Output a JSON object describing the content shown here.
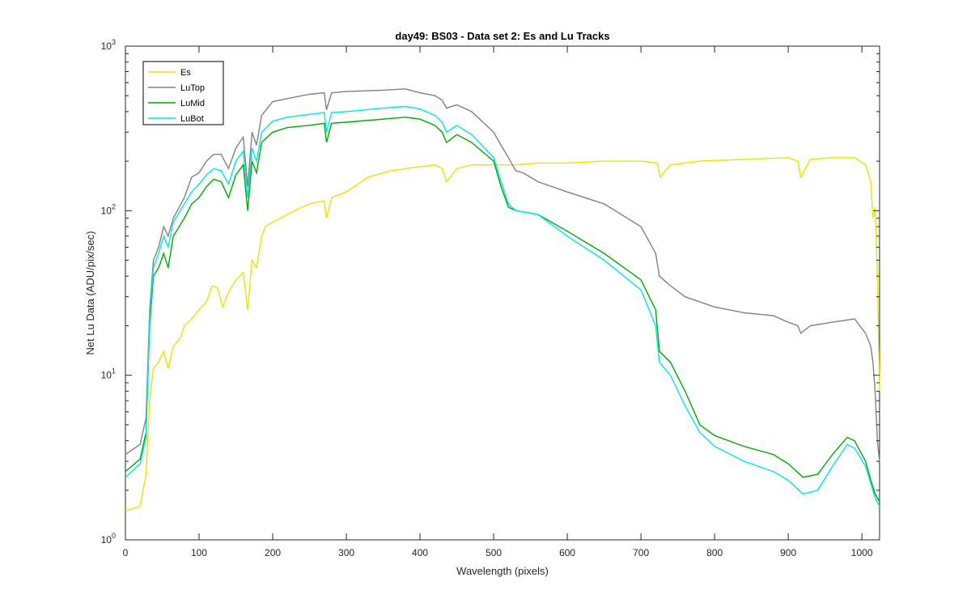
{
  "chart_data": {
    "type": "line",
    "title": "day49: BS03 - Data set 2: Es and Lu Tracks",
    "xlabel": "Wavelength (pixels)",
    "ylabel": "Net Lu Data (ADU/pix/sec)",
    "xlim": [
      0,
      1024
    ],
    "ylim": [
      1,
      1000
    ],
    "yscale": "log",
    "grid": false,
    "legend_position": "top-left",
    "x_ticks": [
      "0",
      "100",
      "200",
      "300",
      "400",
      "500",
      "600",
      "700",
      "800",
      "900",
      "1000"
    ],
    "y_ticks": [
      {
        "base": "10",
        "exp": "0"
      },
      {
        "base": "10",
        "exp": "1"
      },
      {
        "base": "10",
        "exp": "2"
      },
      {
        "base": "10",
        "exp": "3"
      }
    ],
    "series": [
      {
        "name": "Es",
        "color": "#e6e600",
        "points": [
          [
            0,
            1.5
          ],
          [
            20,
            1.6
          ],
          [
            28,
            2.5
          ],
          [
            33,
            7
          ],
          [
            38,
            11
          ],
          [
            45,
            12
          ],
          [
            52,
            14
          ],
          [
            58,
            11
          ],
          [
            65,
            15
          ],
          [
            75,
            17
          ],
          [
            80,
            20
          ],
          [
            90,
            22
          ],
          [
            100,
            25
          ],
          [
            110,
            28
          ],
          [
            118,
            35
          ],
          [
            125,
            34
          ],
          [
            132,
            26
          ],
          [
            140,
            32
          ],
          [
            150,
            38
          ],
          [
            160,
            42
          ],
          [
            166,
            25
          ],
          [
            172,
            50
          ],
          [
            178,
            45
          ],
          [
            185,
            70
          ],
          [
            190,
            80
          ],
          [
            200,
            85
          ],
          [
            210,
            90
          ],
          [
            230,
            100
          ],
          [
            250,
            110
          ],
          [
            270,
            115
          ],
          [
            273,
            90
          ],
          [
            280,
            120
          ],
          [
            300,
            130
          ],
          [
            330,
            160
          ],
          [
            360,
            175
          ],
          [
            380,
            180
          ],
          [
            400,
            185
          ],
          [
            420,
            190
          ],
          [
            430,
            180
          ],
          [
            436,
            150
          ],
          [
            450,
            180
          ],
          [
            470,
            190
          ],
          [
            500,
            190
          ],
          [
            530,
            190
          ],
          [
            560,
            195
          ],
          [
            600,
            195
          ],
          [
            650,
            200
          ],
          [
            700,
            200
          ],
          [
            722,
            195
          ],
          [
            726,
            160
          ],
          [
            740,
            190
          ],
          [
            780,
            200
          ],
          [
            840,
            205
          ],
          [
            900,
            210
          ],
          [
            913,
            200
          ],
          [
            917,
            160
          ],
          [
            930,
            205
          ],
          [
            960,
            210
          ],
          [
            990,
            210
          ],
          [
            1005,
            190
          ],
          [
            1012,
            150
          ],
          [
            1015,
            90
          ],
          [
            1018,
            105
          ],
          [
            1021,
            40
          ],
          [
            1024,
            8
          ]
        ]
      },
      {
        "name": "LuTop",
        "color": "#808080",
        "points": [
          [
            0,
            3.3
          ],
          [
            20,
            3.8
          ],
          [
            28,
            5.5
          ],
          [
            33,
            25
          ],
          [
            38,
            50
          ],
          [
            45,
            60
          ],
          [
            52,
            80
          ],
          [
            58,
            70
          ],
          [
            65,
            90
          ],
          [
            80,
            120
          ],
          [
            90,
            160
          ],
          [
            100,
            170
          ],
          [
            110,
            200
          ],
          [
            120,
            220
          ],
          [
            130,
            220
          ],
          [
            140,
            180
          ],
          [
            150,
            240
          ],
          [
            160,
            280
          ],
          [
            166,
            140
          ],
          [
            172,
            300
          ],
          [
            178,
            250
          ],
          [
            185,
            380
          ],
          [
            200,
            460
          ],
          [
            220,
            480
          ],
          [
            250,
            510
          ],
          [
            270,
            520
          ],
          [
            273,
            410
          ],
          [
            280,
            520
          ],
          [
            300,
            530
          ],
          [
            350,
            540
          ],
          [
            380,
            550
          ],
          [
            400,
            520
          ],
          [
            420,
            500
          ],
          [
            430,
            470
          ],
          [
            436,
            420
          ],
          [
            450,
            440
          ],
          [
            470,
            400
          ],
          [
            500,
            300
          ],
          [
            510,
            250
          ],
          [
            520,
            210
          ],
          [
            530,
            175
          ],
          [
            540,
            170
          ],
          [
            560,
            150
          ],
          [
            600,
            130
          ],
          [
            650,
            110
          ],
          [
            700,
            80
          ],
          [
            720,
            55
          ],
          [
            725,
            40
          ],
          [
            740,
            35
          ],
          [
            760,
            30
          ],
          [
            800,
            26
          ],
          [
            840,
            24
          ],
          [
            880,
            23
          ],
          [
            900,
            21
          ],
          [
            913,
            20
          ],
          [
            917,
            18
          ],
          [
            930,
            20
          ],
          [
            960,
            21
          ],
          [
            990,
            22
          ],
          [
            1005,
            18
          ],
          [
            1012,
            15
          ],
          [
            1015,
            12
          ],
          [
            1018,
            8
          ],
          [
            1021,
            4
          ],
          [
            1024,
            3
          ]
        ]
      },
      {
        "name": "LuMid",
        "color": "#00aa00",
        "points": [
          [
            0,
            2.6
          ],
          [
            20,
            3.1
          ],
          [
            28,
            4.5
          ],
          [
            33,
            20
          ],
          [
            38,
            40
          ],
          [
            45,
            45
          ],
          [
            52,
            55
          ],
          [
            58,
            45
          ],
          [
            65,
            70
          ],
          [
            80,
            90
          ],
          [
            90,
            110
          ],
          [
            100,
            120
          ],
          [
            110,
            140
          ],
          [
            120,
            155
          ],
          [
            130,
            150
          ],
          [
            140,
            120
          ],
          [
            150,
            165
          ],
          [
            160,
            190
          ],
          [
            166,
            100
          ],
          [
            172,
            200
          ],
          [
            178,
            170
          ],
          [
            185,
            260
          ],
          [
            200,
            300
          ],
          [
            220,
            320
          ],
          [
            250,
            330
          ],
          [
            270,
            340
          ],
          [
            273,
            260
          ],
          [
            280,
            340
          ],
          [
            300,
            345
          ],
          [
            350,
            360
          ],
          [
            380,
            370
          ],
          [
            400,
            360
          ],
          [
            420,
            330
          ],
          [
            430,
            300
          ],
          [
            436,
            260
          ],
          [
            450,
            290
          ],
          [
            470,
            260
          ],
          [
            500,
            200
          ],
          [
            510,
            140
          ],
          [
            520,
            105
          ],
          [
            530,
            100
          ],
          [
            560,
            95
          ],
          [
            600,
            75
          ],
          [
            650,
            55
          ],
          [
            700,
            38
          ],
          [
            720,
            25
          ],
          [
            725,
            14
          ],
          [
            740,
            12
          ],
          [
            760,
            8
          ],
          [
            780,
            5
          ],
          [
            800,
            4.3
          ],
          [
            840,
            3.7
          ],
          [
            880,
            3.3
          ],
          [
            900,
            2.9
          ],
          [
            920,
            2.4
          ],
          [
            940,
            2.5
          ],
          [
            960,
            3.3
          ],
          [
            980,
            4.2
          ],
          [
            990,
            4.0
          ],
          [
            1005,
            3.0
          ],
          [
            1012,
            2.3
          ],
          [
            1018,
            1.9
          ],
          [
            1024,
            1.7
          ]
        ]
      },
      {
        "name": "LuBot",
        "color": "#00e5ee",
        "points": [
          [
            0,
            2.4
          ],
          [
            20,
            2.9
          ],
          [
            28,
            4.2
          ],
          [
            33,
            22
          ],
          [
            38,
            45
          ],
          [
            45,
            55
          ],
          [
            52,
            70
          ],
          [
            58,
            60
          ],
          [
            65,
            85
          ],
          [
            80,
            110
          ],
          [
            90,
            130
          ],
          [
            100,
            145
          ],
          [
            110,
            165
          ],
          [
            120,
            180
          ],
          [
            130,
            175
          ],
          [
            140,
            145
          ],
          [
            150,
            200
          ],
          [
            160,
            230
          ],
          [
            166,
            120
          ],
          [
            172,
            240
          ],
          [
            178,
            200
          ],
          [
            185,
            300
          ],
          [
            200,
            350
          ],
          [
            220,
            370
          ],
          [
            250,
            385
          ],
          [
            270,
            395
          ],
          [
            273,
            300
          ],
          [
            280,
            395
          ],
          [
            300,
            400
          ],
          [
            350,
            420
          ],
          [
            380,
            430
          ],
          [
            400,
            415
          ],
          [
            420,
            380
          ],
          [
            430,
            345
          ],
          [
            436,
            300
          ],
          [
            450,
            330
          ],
          [
            470,
            290
          ],
          [
            500,
            210
          ],
          [
            510,
            150
          ],
          [
            520,
            110
          ],
          [
            530,
            100
          ],
          [
            560,
            95
          ],
          [
            600,
            70
          ],
          [
            650,
            50
          ],
          [
            700,
            33
          ],
          [
            720,
            20
          ],
          [
            725,
            12
          ],
          [
            740,
            10
          ],
          [
            760,
            6.5
          ],
          [
            780,
            4.5
          ],
          [
            800,
            3.7
          ],
          [
            840,
            3.0
          ],
          [
            880,
            2.6
          ],
          [
            900,
            2.3
          ],
          [
            920,
            1.9
          ],
          [
            940,
            2.0
          ],
          [
            960,
            2.8
          ],
          [
            980,
            3.8
          ],
          [
            990,
            3.6
          ],
          [
            1005,
            2.8
          ],
          [
            1012,
            2.2
          ],
          [
            1018,
            1.8
          ],
          [
            1024,
            1.6
          ]
        ]
      }
    ]
  }
}
